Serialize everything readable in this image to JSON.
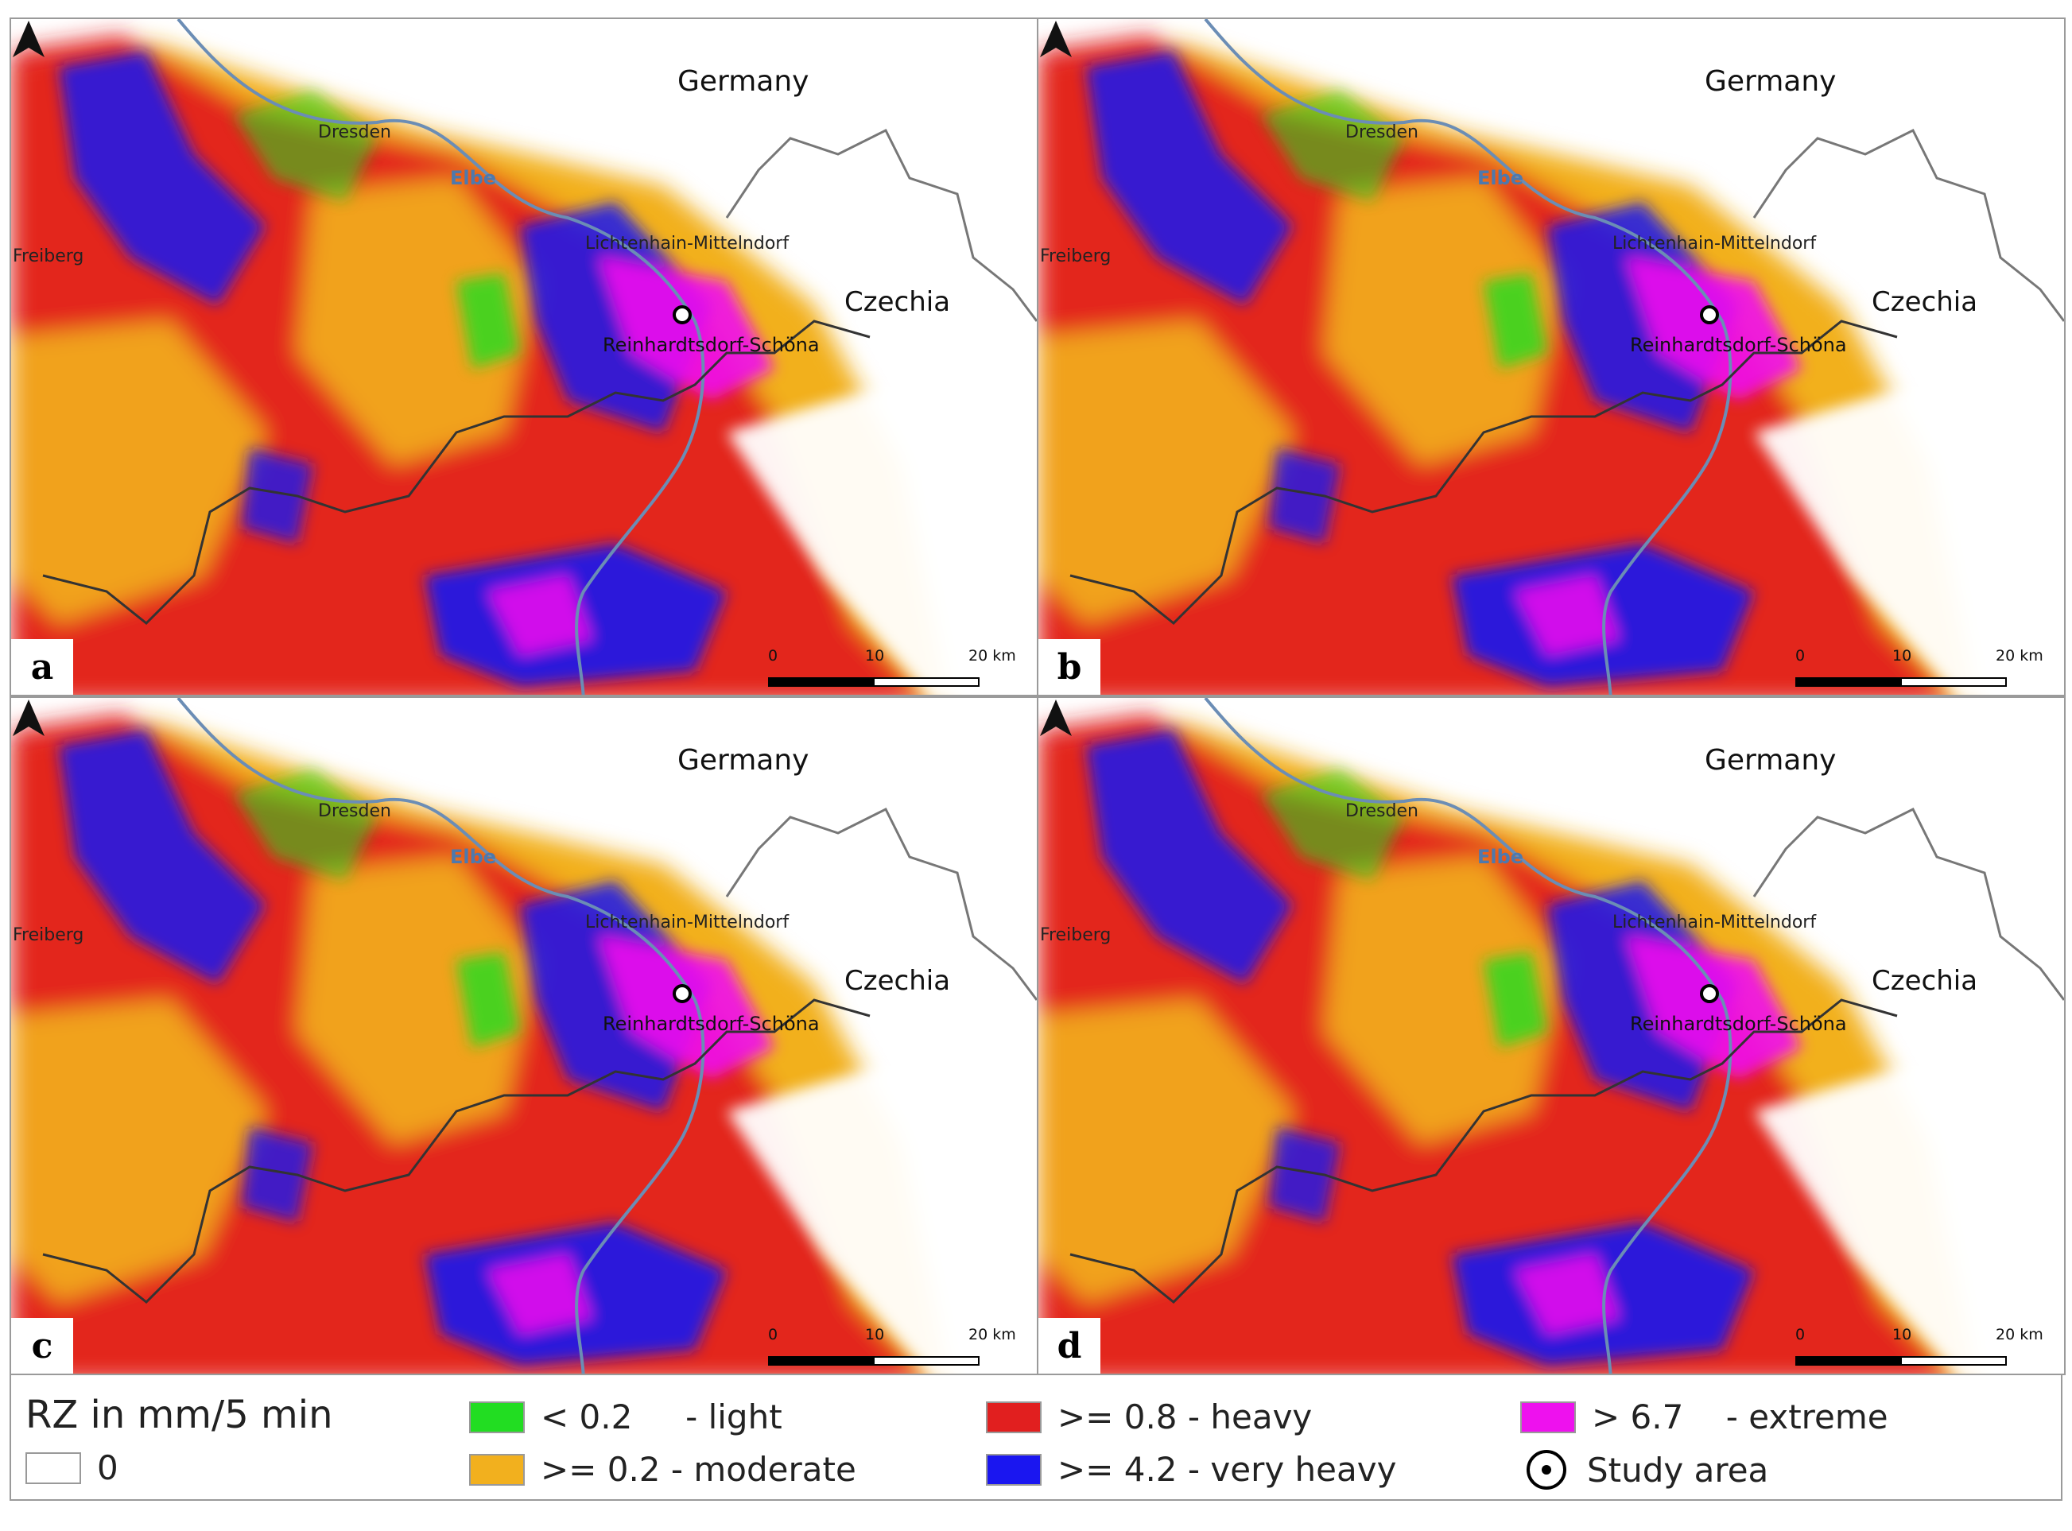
{
  "panels": [
    {
      "id": "a",
      "letter": "a"
    },
    {
      "id": "b",
      "letter": "b"
    },
    {
      "id": "c",
      "letter": "c"
    },
    {
      "id": "d",
      "letter": "d"
    }
  ],
  "places": {
    "germany": "Germany",
    "czechia": "Czechia",
    "dresden": "Dresden",
    "elbe": "Elbe",
    "freiberg": "Freiberg",
    "lichtenhain": "Lichtenhain-Mittelndorf",
    "reinhardtsdorf": "Reinhardtsdorf-Schöna"
  },
  "scale": {
    "t0": "0",
    "t10": "10",
    "t20": "20 km"
  },
  "legend": {
    "title": "RZ in mm/5 min",
    "items": [
      {
        "label": "0",
        "color": "#ffffff"
      },
      {
        "label": "< 0.2     - light",
        "color": "#22dd22"
      },
      {
        "label": ">= 0.2 - moderate",
        "color": "#f2b01e"
      },
      {
        "label": ">= 0.8 - heavy",
        "color": "#e11f1f"
      },
      {
        "label": ">= 4.2 - very heavy",
        "color": "#1a16f0"
      },
      {
        "label": "> 6.7    - extreme",
        "color": "#ee11ee"
      }
    ],
    "study_area": "Study area"
  },
  "colors": {
    "border": "#333333",
    "river": "#6b8db5",
    "frame": "#9a9a9a"
  }
}
